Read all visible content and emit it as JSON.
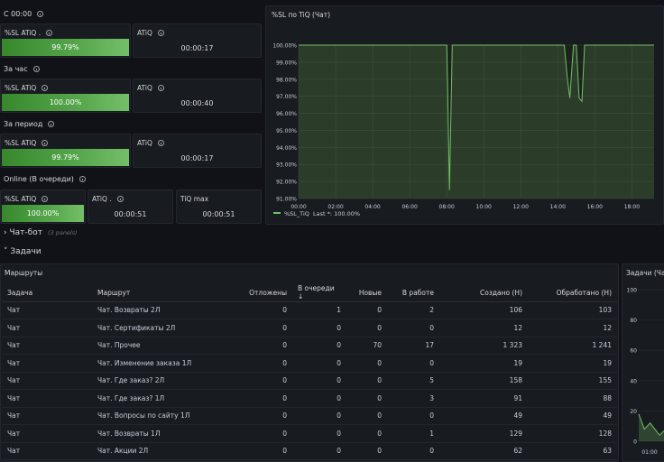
{
  "sections": {
    "since_midnight": "С 00:00",
    "last_hour": "За час",
    "period": "За период",
    "online": "Online (В очереди)"
  },
  "stats": {
    "sl_midnight": {
      "title": "%SL ATiQ .",
      "value": "99.79%"
    },
    "atiq_midnight": {
      "title": "ATiQ",
      "value": "00:00:17"
    },
    "sl_hour": {
      "title": "%SL ATiQ",
      "value": "100.00%"
    },
    "atiq_hour": {
      "title": "ATiQ",
      "value": "00:00:40"
    },
    "sl_period": {
      "title": "%SL ATiQ",
      "value": "99.79%"
    },
    "atiq_period": {
      "title": "ATiQ",
      "value": "00:00:17"
    },
    "sl_online": {
      "title": "%SL ATiQ",
      "value": "100.00%"
    },
    "atiq_online": {
      "title": "ATiQ .",
      "value": "00:00:51"
    },
    "tiq_max": {
      "title": "TiQ max",
      "value": "00:00:51"
    }
  },
  "chart_data": [
    {
      "type": "area",
      "title": "%SL по TiQ (Чат)",
      "y_ticks": [
        "100.00%",
        "99.00%",
        "98.00%",
        "97.00%",
        "96.00%",
        "95.00%",
        "94.00%",
        "93.00%",
        "92.00%",
        "91.00%"
      ],
      "x_ticks": [
        "00:00",
        "02:00",
        "04:00",
        "06:00",
        "08:00",
        "10:00",
        "12:00",
        "14:00",
        "16:00",
        "18:00"
      ],
      "ylim": [
        91,
        100
      ],
      "xlim_hours": [
        0,
        19.2
      ],
      "series": [
        {
          "name": "%SL_TiQ",
          "color": "#73bf69",
          "x_hours": [
            0,
            8.0,
            8.05,
            8.15,
            8.3,
            14.35,
            14.5,
            14.65,
            14.85,
            15.0,
            15.15,
            15.3,
            15.45,
            19.2
          ],
          "values": [
            100,
            100,
            97.5,
            91.5,
            100,
            100,
            98.2,
            96.9,
            100,
            100,
            96.9,
            96.7,
            100,
            100
          ]
        }
      ],
      "legend": {
        "position": "bottom-left",
        "label": "%SL_TiQ",
        "stat": "Last *: 100.00%"
      }
    },
    {
      "type": "area",
      "title": "Задачи (Ча",
      "y_ticks": [
        "100",
        "80",
        "60",
        "40",
        "20",
        "0"
      ],
      "x_ticks": [
        "01:00",
        "0"
      ],
      "ylim": [
        0,
        100
      ],
      "series": [
        {
          "name": "",
          "color": "#73bf69",
          "x": [
            0,
            0.15,
            0.3,
            0.55,
            0.75,
            1.0
          ],
          "values": [
            18,
            8,
            12,
            4,
            9,
            3
          ]
        }
      ]
    }
  ],
  "rows": {
    "chatbot": {
      "label": "Чат-бот",
      "note": "(3 panels)"
    },
    "tasks": {
      "label": "Задачи"
    }
  },
  "routes": {
    "title": "Маршруты",
    "columns": [
      "Задача",
      "Маршрут",
      "Отложены",
      "В очереди",
      "Новые",
      "В работе",
      "Создано (Н)",
      "Обработано (Н)"
    ],
    "sort_icon": "arrow-down-icon",
    "rows": [
      [
        "Чат",
        "Чат. Возвраты 2Л",
        "0",
        "1",
        "0",
        "2",
        "106",
        "103"
      ],
      [
        "Чат",
        "Чат. Сертификаты 2Л",
        "0",
        "0",
        "0",
        "0",
        "12",
        "12"
      ],
      [
        "Чат",
        "Чат. Прочее",
        "0",
        "0",
        "70",
        "17",
        "1 323",
        "1 241"
      ],
      [
        "Чат",
        "Чат. Изменение заказа 1Л",
        "0",
        "0",
        "0",
        "0",
        "19",
        "19"
      ],
      [
        "Чат",
        "Чат. Где заказ? 2Л",
        "0",
        "0",
        "0",
        "5",
        "158",
        "155"
      ],
      [
        "Чат",
        "Чат. Где заказ? 1Л",
        "0",
        "0",
        "0",
        "3",
        "91",
        "88"
      ],
      [
        "Чат",
        "Чат. Вопросы по сайту 1Л",
        "0",
        "0",
        "0",
        "0",
        "49",
        "49"
      ],
      [
        "Чат",
        "Чат. Возвраты 1Л",
        "0",
        "0",
        "0",
        "1",
        "129",
        "128"
      ],
      [
        "Чат",
        "Чат. Акции 2Л",
        "0",
        "0",
        "0",
        "0",
        "62",
        "63"
      ]
    ]
  },
  "colors": {
    "background": "#111217",
    "panel": "#181b1f",
    "green": "#73bf69",
    "dark_green": "#37872d"
  }
}
